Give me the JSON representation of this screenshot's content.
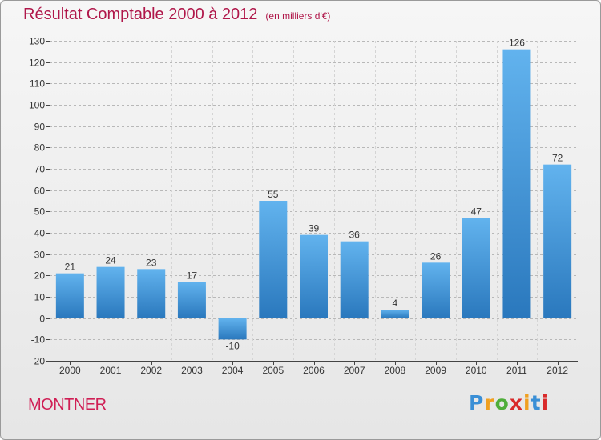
{
  "title": "Résultat Comptable 2000 à 2012",
  "unit_label": "(en milliers d'€)",
  "commune": "MONTNER",
  "logo": {
    "letters": [
      "P",
      "r",
      "o",
      "x",
      "i",
      "t",
      "i"
    ],
    "colors": [
      "#3a8fd6",
      "#f0a020",
      "#4fae3a",
      "#d92a2a",
      "#f0a020",
      "#3a8fd6",
      "#d92a2a"
    ]
  },
  "colors": {
    "title": "#b0174a",
    "bar_top": "#62b3ee",
    "bar_bottom": "#2a78bd",
    "axis": "#444444"
  },
  "chart_data": {
    "type": "bar",
    "title": "Résultat Comptable 2000 à 2012",
    "ylabel": "(en milliers d'€)",
    "xlabel": "",
    "categories": [
      "2000",
      "2001",
      "2002",
      "2003",
      "2004",
      "2005",
      "2006",
      "2007",
      "2008",
      "2009",
      "2010",
      "2011",
      "2012"
    ],
    "values": [
      21,
      24,
      23,
      17,
      -10,
      55,
      39,
      36,
      4,
      26,
      47,
      126,
      72
    ],
    "value_labels": [
      "21",
      "24",
      "23",
      "17",
      "-10",
      "55",
      "39",
      "36",
      "4",
      "26",
      "47",
      "126",
      "72"
    ],
    "ylim": [
      -20,
      130
    ],
    "yticks": [
      -20,
      -10,
      0,
      10,
      20,
      30,
      40,
      50,
      60,
      70,
      80,
      90,
      100,
      110,
      120,
      130
    ],
    "ytick_labels": [
      "-20",
      "-10",
      "0",
      "10",
      "20",
      "30",
      "40",
      "50",
      "60",
      "70",
      "80",
      "90",
      "100",
      "110",
      "120",
      "130"
    ],
    "grid": "horizontal dashed"
  }
}
